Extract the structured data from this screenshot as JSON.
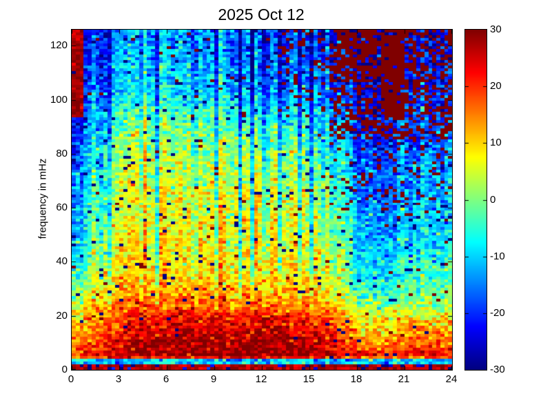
{
  "chart_data": {
    "type": "heatmap",
    "title": "2025 Oct 12",
    "xlabel": "",
    "ylabel": "frequency in mHz",
    "xlim": [
      0,
      24
    ],
    "ylim": [
      0,
      126
    ],
    "x_ticks": [
      0,
      3,
      6,
      9,
      12,
      15,
      18,
      21,
      24
    ],
    "y_ticks": [
      0,
      20,
      40,
      60,
      80,
      100,
      120
    ],
    "grid": "off",
    "colormap": "jet",
    "background_color": "#ffffff",
    "axis_color": "#000000",
    "colorbar": {
      "position": "right",
      "min": -30,
      "max": 30,
      "ticks": [
        30,
        20,
        10,
        0,
        -10,
        -20,
        -30
      ]
    },
    "field_db": {
      "comment": "coarse power grid in dB (clim -30..30); rows = freq_points (mHz, low to high), cols = time_points (hours)",
      "time_points": [
        0,
        1,
        2.5,
        4,
        6,
        8,
        10,
        12,
        14,
        15.5,
        16.5,
        18,
        20,
        22,
        24
      ],
      "freq_points": [
        0,
        2,
        5,
        10,
        18,
        26,
        35,
        50,
        65,
        80,
        92,
        105,
        118,
        127
      ],
      "values": [
        [
          28,
          28,
          28,
          28,
          28,
          28,
          28,
          28,
          28,
          28,
          28,
          28,
          28,
          28,
          28
        ],
        [
          -10,
          -12,
          -10,
          -12,
          -10,
          -14,
          -10,
          -12,
          -10,
          -12,
          -10,
          -12,
          -14,
          -12,
          -10
        ],
        [
          18,
          22,
          26,
          28,
          29,
          30,
          30,
          30,
          29,
          28,
          26,
          22,
          20,
          24,
          22
        ],
        [
          12,
          16,
          22,
          26,
          28,
          28,
          28,
          28,
          27,
          26,
          22,
          16,
          14,
          18,
          16
        ],
        [
          8,
          12,
          18,
          22,
          24,
          22,
          24,
          24,
          22,
          20,
          16,
          10,
          8,
          12,
          10
        ],
        [
          2,
          6,
          12,
          15,
          16,
          14,
          15,
          15,
          14,
          12,
          6,
          0,
          -2,
          0,
          2
        ],
        [
          -4,
          0,
          6,
          10,
          11,
          10,
          10,
          11,
          10,
          8,
          2,
          -5,
          -8,
          -5,
          -2
        ],
        [
          -12,
          -4,
          2,
          7,
          9,
          7,
          8,
          9,
          7,
          4,
          -2,
          -9,
          -12,
          -10,
          -7
        ],
        [
          -15,
          -6,
          0,
          5,
          8,
          5,
          6,
          7,
          5,
          1,
          -6,
          -13,
          -15,
          -12,
          -9
        ],
        [
          -18,
          -9,
          -3,
          2,
          4,
          1,
          2,
          3,
          1,
          -4,
          -10,
          -16,
          -18,
          -15,
          -12
        ],
        [
          -20,
          -13,
          -7,
          -2,
          1,
          -2,
          -2,
          -5,
          -6,
          -9,
          -15,
          -20,
          -20,
          -18,
          -15
        ],
        [
          -22,
          -17,
          -14,
          -10,
          -8,
          -11,
          -11,
          -13,
          -14,
          -15,
          -20,
          -23,
          -22,
          -21,
          -18
        ],
        [
          -24,
          -19,
          -16,
          -12,
          -10,
          -13,
          -13,
          -16,
          -17,
          -18,
          -22,
          -24,
          -24,
          -23,
          -20
        ],
        [
          -25,
          -20,
          -17,
          -13,
          -11,
          -14,
          -14,
          -17,
          -18,
          -19,
          -23,
          -25,
          -25,
          -24,
          -21
        ]
      ]
    },
    "texture": {
      "seed": 42,
      "pixel_grid": {
        "cols": 96,
        "rows": 124
      },
      "noise_sigma_db": 4.2,
      "column_sigma_db": 2.8,
      "column_weight_freq": {
        "start": 18,
        "span": 25
      },
      "dark_column_stripes_hours": [
        5.3,
        7.7,
        9.2,
        10.6,
        11.4,
        12.15,
        13.2,
        14.3,
        15.2
      ],
      "dark_column_offset_db": -11,
      "bottom_red_line": {
        "f_max": 2,
        "value_db": 27,
        "blue_mix_p": 0.25
      },
      "cyan_stripe": {
        "f_min": 2,
        "f_max": 4.2,
        "value_db": -11,
        "sigma": 5.5
      },
      "hot_patch": {
        "t_range": [
          0,
          0.85
        ],
        "f_range": [
          93,
          127
        ],
        "value_db": 28
      },
      "clip_regions": [
        {
          "t": [
            16.3,
            24
          ],
          "f": [
            85,
            127
          ],
          "p_red": 0.45
        },
        {
          "t": [
            19.6,
            21.0
          ],
          "f": [
            92,
            127
          ],
          "p_red": 0.85
        },
        {
          "t": [
            16.8,
            19.2
          ],
          "f": [
            110,
            127
          ],
          "p_red": 0.65
        },
        {
          "t": [
            13.0,
            16.3
          ],
          "f": [
            93,
            127
          ],
          "p_red": 0.15
        },
        {
          "t": [
            16.3,
            24
          ],
          "f": [
            55,
            85
          ],
          "p_red": 0.1
        },
        {
          "t": [
            0,
            24
          ],
          "f": [
            4,
            127
          ],
          "p_red": 0.012
        },
        {
          "t": [
            0,
            24
          ],
          "f": [
            25,
            127
          ],
          "p_blue": 0.025
        },
        {
          "t": [
            0,
            24
          ],
          "f": [
            4,
            25
          ],
          "p_blue": 0.012
        }
      ]
    }
  }
}
